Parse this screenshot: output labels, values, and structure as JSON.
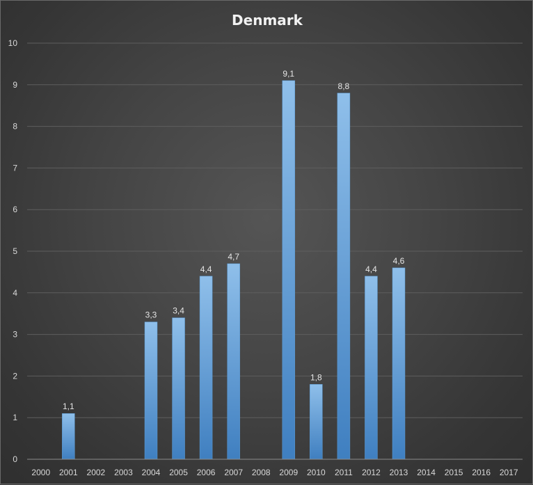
{
  "chart_data": {
    "type": "bar",
    "title": "Denmark",
    "xlabel": "",
    "ylabel": "",
    "categories": [
      "2000",
      "2001",
      "2002",
      "2003",
      "2004",
      "2005",
      "2006",
      "2007",
      "2008",
      "2009",
      "2010",
      "2011",
      "2012",
      "2013",
      "2014",
      "2015",
      "2016",
      "2017"
    ],
    "values": [
      null,
      1.1,
      null,
      null,
      3.3,
      3.4,
      4.4,
      4.7,
      null,
      9.1,
      1.8,
      8.8,
      4.4,
      4.6,
      null,
      null,
      null,
      null
    ],
    "value_labels": [
      "",
      "1,1",
      "",
      "",
      "3,3",
      "3,4",
      "4,4",
      "4,7",
      "",
      "9,1",
      "1,8",
      "8,8",
      "4,4",
      "4,6",
      "",
      "",
      "",
      ""
    ],
    "ylim": [
      0,
      10
    ],
    "yticks": [
      "0",
      "1",
      "2",
      "3",
      "4",
      "5",
      "6",
      "7",
      "8",
      "9",
      "10"
    ],
    "grid": true,
    "legend": "none",
    "colors": {
      "bar": "#5b9bd5",
      "bar_light": "#8fbfea",
      "bar_dark": "#3f7fc0",
      "background": "#404040",
      "text": "#d9d9d9"
    }
  }
}
